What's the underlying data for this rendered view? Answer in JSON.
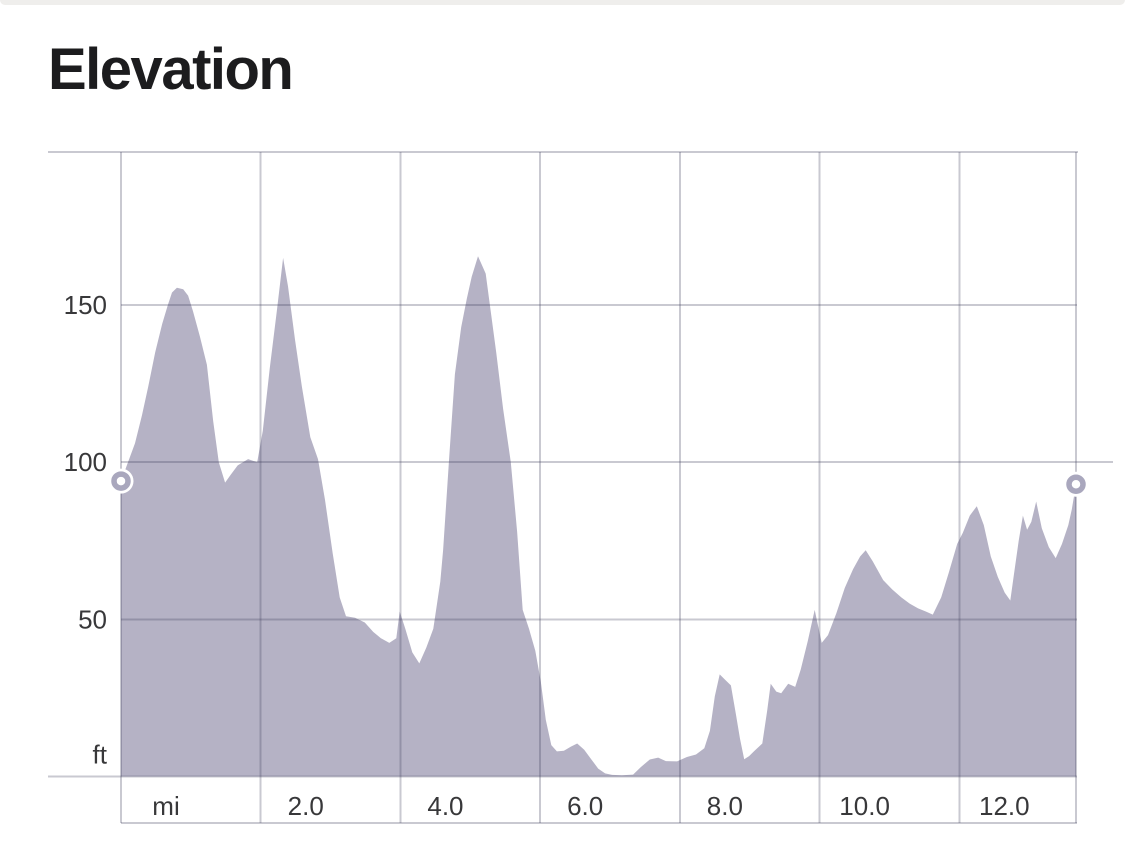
{
  "chart_data": {
    "type": "area",
    "title": "Elevation",
    "x_unit": "mi",
    "y_unit": "ft",
    "xlim": [
      0,
      13.67
    ],
    "ylim": [
      0,
      198.7
    ],
    "grid": true,
    "legend": "none",
    "x_ticks": [
      {
        "mi": 0,
        "label": "mi"
      },
      {
        "mi": 2,
        "label": "2.0"
      },
      {
        "mi": 4,
        "label": "4.0"
      },
      {
        "mi": 6,
        "label": "6.0"
      },
      {
        "mi": 8,
        "label": "8.0"
      },
      {
        "mi": 10,
        "label": "10.0"
      },
      {
        "mi": 12,
        "label": "12.0"
      }
    ],
    "y_ticks": [
      {
        "ft": 150,
        "label": "150"
      },
      {
        "ft": 100,
        "label": "100"
      },
      {
        "ft": 50,
        "label": "50"
      },
      {
        "ft": 0,
        "label": "ft"
      }
    ],
    "colors": {
      "area_fill": "#b5b2c5",
      "grid_line": "rgba(62,61,88,0.28)",
      "tick_label": "#38383a",
      "title": "#1c1c1e",
      "marker_ring": "#a9a7bd",
      "marker_center": "#ffffff",
      "top_strip": "#efeeec"
    },
    "start_point": {
      "mi": 0,
      "ft": 94
    },
    "end_point": {
      "mi": 13.67,
      "ft": 93
    },
    "profile": [
      [
        0,
        94
      ],
      [
        0.1,
        100
      ],
      [
        0.2,
        106
      ],
      [
        0.3,
        115
      ],
      [
        0.39,
        124
      ],
      [
        0.49,
        135
      ],
      [
        0.59,
        144
      ],
      [
        0.67,
        150
      ],
      [
        0.73,
        154
      ],
      [
        0.8,
        155.5
      ],
      [
        0.89,
        155
      ],
      [
        0.96,
        153
      ],
      [
        1.03,
        148
      ],
      [
        1.13,
        140
      ],
      [
        1.23,
        131
      ],
      [
        1.32,
        113
      ],
      [
        1.4,
        100
      ],
      [
        1.49,
        93.5
      ],
      [
        1.57,
        96
      ],
      [
        1.67,
        99
      ],
      [
        1.82,
        101
      ],
      [
        1.95,
        100
      ],
      [
        2.03,
        110
      ],
      [
        2.13,
        130
      ],
      [
        2.23,
        148
      ],
      [
        2.32,
        165
      ],
      [
        2.39,
        156
      ],
      [
        2.49,
        139
      ],
      [
        2.59,
        124
      ],
      [
        2.71,
        108
      ],
      [
        2.82,
        101
      ],
      [
        2.92,
        88
      ],
      [
        3.03,
        71
      ],
      [
        3.13,
        57
      ],
      [
        3.22,
        51
      ],
      [
        3.35,
        50.5
      ],
      [
        3.49,
        49
      ],
      [
        3.61,
        46
      ],
      [
        3.72,
        44
      ],
      [
        3.84,
        42.5
      ],
      [
        3.94,
        44
      ],
      [
        3.99,
        52.5
      ],
      [
        4.07,
        47
      ],
      [
        4.17,
        39.5
      ],
      [
        4.27,
        36
      ],
      [
        4.37,
        41
      ],
      [
        4.47,
        47
      ],
      [
        4.57,
        62
      ],
      [
        4.61,
        72
      ],
      [
        4.7,
        102
      ],
      [
        4.78,
        128
      ],
      [
        4.87,
        143
      ],
      [
        4.95,
        152
      ],
      [
        5.02,
        159
      ],
      [
        5.11,
        165.5
      ],
      [
        5.18,
        162
      ],
      [
        5.22,
        160
      ],
      [
        5.28,
        150
      ],
      [
        5.37,
        135
      ],
      [
        5.47,
        117
      ],
      [
        5.58,
        100
      ],
      [
        5.67,
        78
      ],
      [
        5.75,
        53
      ],
      [
        5.84,
        47
      ],
      [
        5.93,
        40
      ],
      [
        6.01,
        30
      ],
      [
        6.08,
        18
      ],
      [
        6.16,
        10
      ],
      [
        6.24,
        8
      ],
      [
        6.34,
        8.2
      ],
      [
        6.44,
        9.5
      ],
      [
        6.53,
        10.5
      ],
      [
        6.63,
        8.5
      ],
      [
        6.73,
        5.5
      ],
      [
        6.83,
        2.5
      ],
      [
        6.93,
        1
      ],
      [
        7.03,
        0.5
      ],
      [
        7.17,
        0.4
      ],
      [
        7.33,
        0.6
      ],
      [
        7.44,
        3
      ],
      [
        7.57,
        5.4
      ],
      [
        7.69,
        6
      ],
      [
        7.8,
        4.9
      ],
      [
        7.96,
        4.8
      ],
      [
        8.1,
        6.2
      ],
      [
        8.23,
        7
      ],
      [
        8.35,
        9
      ],
      [
        8.43,
        14.5
      ],
      [
        8.5,
        25.5
      ],
      [
        8.57,
        32.5
      ],
      [
        8.66,
        30.5
      ],
      [
        8.73,
        29
      ],
      [
        8.8,
        20
      ],
      [
        8.86,
        12
      ],
      [
        8.92,
        5.5
      ],
      [
        8.99,
        6.5
      ],
      [
        9.06,
        8
      ],
      [
        9.18,
        10.5
      ],
      [
        9.25,
        21
      ],
      [
        9.3,
        29.5
      ],
      [
        9.38,
        27
      ],
      [
        9.45,
        26.5
      ],
      [
        9.55,
        29.5
      ],
      [
        9.65,
        28.5
      ],
      [
        9.73,
        34
      ],
      [
        9.83,
        43
      ],
      [
        9.93,
        53
      ],
      [
        10.03,
        42.5
      ],
      [
        10.12,
        45
      ],
      [
        10.24,
        52
      ],
      [
        10.36,
        60
      ],
      [
        10.48,
        66
      ],
      [
        10.58,
        70
      ],
      [
        10.66,
        72
      ],
      [
        10.76,
        68.5
      ],
      [
        10.91,
        62.5
      ],
      [
        11.04,
        59.5
      ],
      [
        11.17,
        57
      ],
      [
        11.29,
        55
      ],
      [
        11.41,
        53.5
      ],
      [
        11.52,
        52.5
      ],
      [
        11.62,
        51.5
      ],
      [
        11.74,
        57
      ],
      [
        11.85,
        65
      ],
      [
        11.97,
        74
      ],
      [
        12.05,
        77.5
      ],
      [
        12.15,
        83
      ],
      [
        12.25,
        86
      ],
      [
        12.35,
        80
      ],
      [
        12.45,
        70
      ],
      [
        12.55,
        63.5
      ],
      [
        12.65,
        58.5
      ],
      [
        12.73,
        56
      ],
      [
        12.78,
        64
      ],
      [
        12.85,
        75
      ],
      [
        12.91,
        83
      ],
      [
        12.97,
        78.5
      ],
      [
        13.03,
        81
      ],
      [
        13.1,
        87.5
      ],
      [
        13.18,
        79
      ],
      [
        13.28,
        73
      ],
      [
        13.38,
        69.5
      ],
      [
        13.47,
        74
      ],
      [
        13.56,
        80
      ],
      [
        13.61,
        85
      ],
      [
        13.67,
        93
      ]
    ]
  }
}
